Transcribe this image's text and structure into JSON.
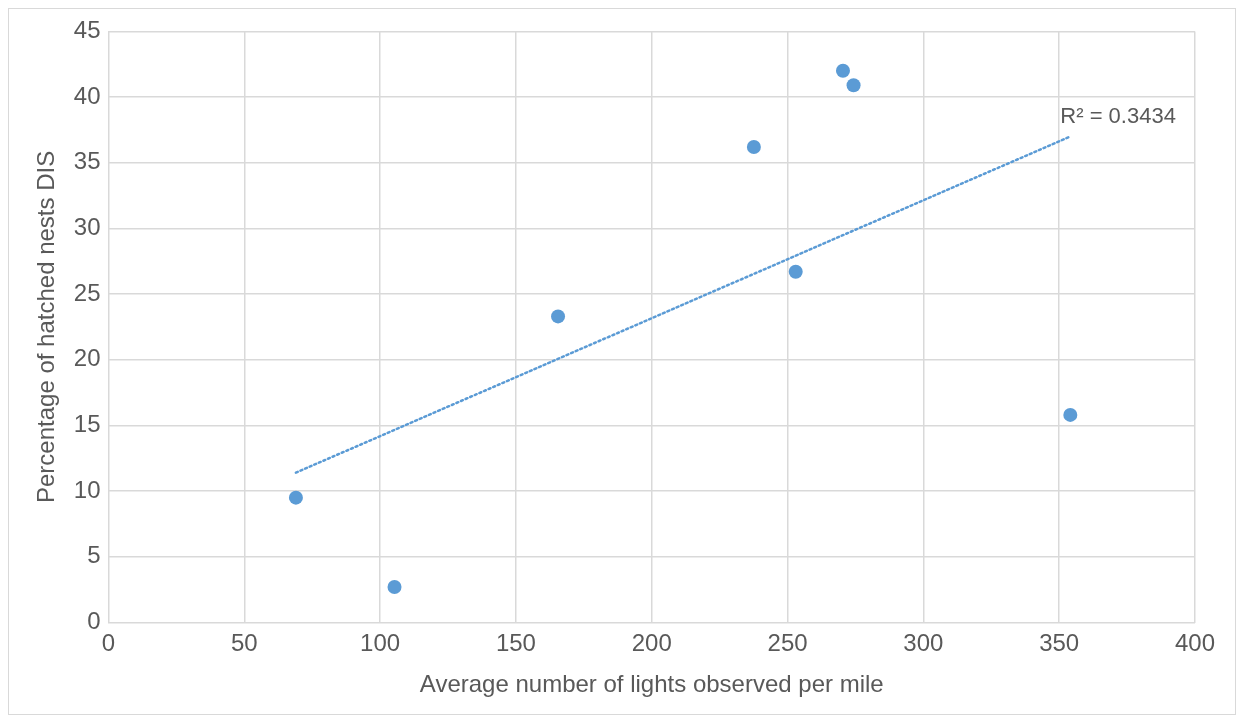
{
  "chart_data": {
    "type": "scatter",
    "xlabel": "Average number of lights observed per mile",
    "ylabel": "Percentage of hatched nests DIS",
    "xlim": [
      0,
      400
    ],
    "ylim": [
      0,
      45
    ],
    "xticks": [
      0,
      50,
      100,
      150,
      200,
      250,
      300,
      350,
      400
    ],
    "yticks": [
      0,
      5,
      10,
      15,
      20,
      25,
      30,
      35,
      40,
      45
    ],
    "grid": true,
    "legend": false,
    "marker": "circle",
    "series": [
      {
        "type": "scatter",
        "color": "#5b9bd5",
        "x": [
          69,
          105.3,
          165.5,
          237.6,
          253,
          270.4,
          274.3,
          354.1
        ],
        "values": [
          9.5,
          2.7,
          23.3,
          36.2,
          26.7,
          42,
          40.9,
          15.8
        ]
      },
      {
        "type": "line",
        "color": "#5b9bd5",
        "line_style": "dotted",
        "marker": "none",
        "x": [
          69,
          354.1
        ],
        "values": [
          11.4,
          37
        ]
      }
    ],
    "annotations": [
      "R² = 0.3434"
    ]
  }
}
